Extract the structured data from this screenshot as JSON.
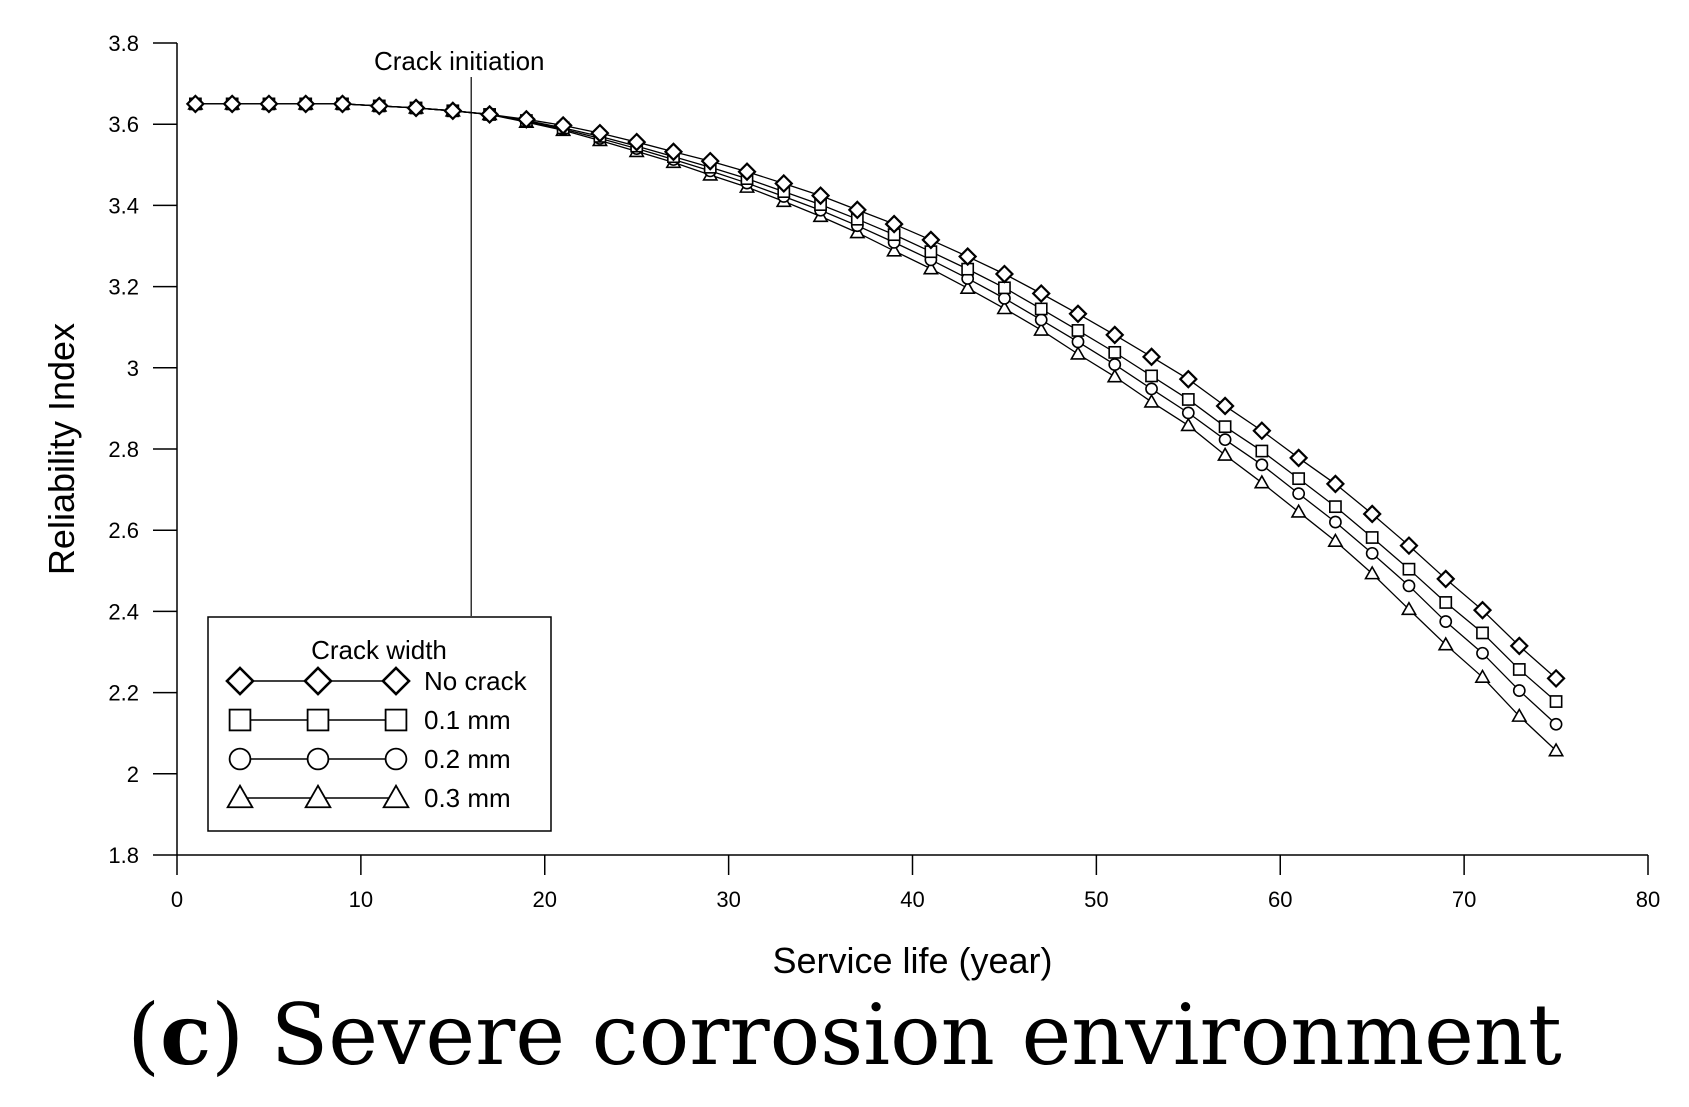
{
  "chart_data": {
    "type": "line",
    "title": "",
    "caption": {
      "open": "(",
      "letter": "c",
      "rest": ") Severe corrosion environment"
    },
    "xlabel": "Service life (year)",
    "ylabel": "Reliability Index",
    "xlim": [
      0,
      80
    ],
    "ylim": [
      1.8,
      3.8
    ],
    "xticks": [
      0,
      10,
      20,
      30,
      40,
      50,
      60,
      70,
      80
    ],
    "yticks": [
      1.8,
      2,
      2.2,
      2.4,
      2.6,
      2.8,
      3,
      3.2,
      3.4,
      3.6,
      3.8
    ],
    "ytick_labels": [
      "1.8",
      "2",
      "2.2",
      "2.4",
      "2.6",
      "2.8",
      "3",
      "3.2",
      "3.4",
      "3.6",
      "3.8"
    ],
    "grid": false,
    "annotation": {
      "text": "Crack initiation",
      "x": 16
    },
    "legend": {
      "title": "Crack width",
      "placement": "bottom-left"
    },
    "x": [
      1,
      3,
      5,
      7,
      9,
      11,
      13,
      15,
      17,
      19,
      21,
      23,
      25,
      27,
      29,
      31,
      33,
      35,
      37,
      39,
      41,
      43,
      45,
      47,
      49,
      51,
      53,
      55,
      57,
      59,
      61,
      63,
      65,
      67,
      69,
      71,
      73,
      75
    ],
    "series": [
      {
        "name": "No crack",
        "marker": "diamond",
        "values": [
          3.65,
          3.65,
          3.65,
          3.65,
          3.65,
          3.645,
          3.64,
          3.633,
          3.624,
          3.612,
          3.597,
          3.578,
          3.556,
          3.532,
          3.509,
          3.483,
          3.454,
          3.424,
          3.389,
          3.354,
          3.315,
          3.274,
          3.231,
          3.183,
          3.133,
          3.081,
          3.027,
          2.972,
          2.906,
          2.845,
          2.778,
          2.714,
          2.64,
          2.562,
          2.48,
          2.403,
          2.315,
          2.235
        ]
      },
      {
        "name": "0.1 mm",
        "marker": "square",
        "values": [
          3.65,
          3.65,
          3.65,
          3.65,
          3.65,
          3.645,
          3.64,
          3.633,
          3.624,
          3.609,
          3.591,
          3.57,
          3.546,
          3.52,
          3.494,
          3.466,
          3.434,
          3.402,
          3.366,
          3.328,
          3.286,
          3.243,
          3.197,
          3.145,
          3.092,
          3.038,
          2.98,
          2.922,
          2.855,
          2.795,
          2.727,
          2.658,
          2.582,
          2.504,
          2.422,
          2.347,
          2.257,
          2.178
        ]
      },
      {
        "name": "0.2 mm",
        "marker": "circle",
        "values": [
          3.65,
          3.65,
          3.65,
          3.65,
          3.65,
          3.645,
          3.64,
          3.633,
          3.624,
          3.607,
          3.588,
          3.565,
          3.54,
          3.513,
          3.485,
          3.455,
          3.422,
          3.388,
          3.35,
          3.309,
          3.266,
          3.22,
          3.171,
          3.118,
          3.064,
          3.008,
          2.948,
          2.889,
          2.823,
          2.761,
          2.69,
          2.62,
          2.543,
          2.463,
          2.375,
          2.297,
          2.205,
          2.122
        ]
      },
      {
        "name": "0.3 mm",
        "marker": "triangle",
        "values": [
          3.65,
          3.65,
          3.65,
          3.65,
          3.65,
          3.645,
          3.64,
          3.633,
          3.624,
          3.605,
          3.585,
          3.56,
          3.533,
          3.506,
          3.475,
          3.445,
          3.41,
          3.373,
          3.333,
          3.288,
          3.244,
          3.196,
          3.146,
          3.093,
          3.034,
          2.978,
          2.916,
          2.858,
          2.785,
          2.717,
          2.645,
          2.573,
          2.493,
          2.405,
          2.318,
          2.238,
          2.142,
          2.057
        ]
      }
    ]
  }
}
